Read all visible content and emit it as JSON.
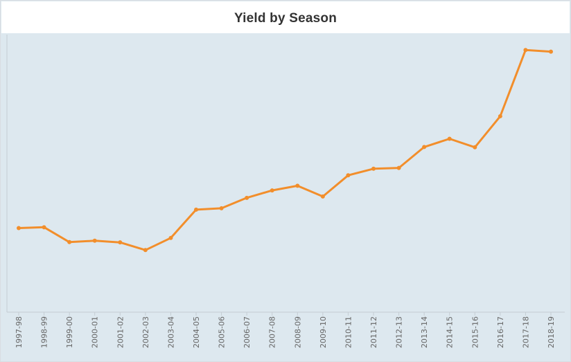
{
  "colors": {
    "background": "#dde8ef",
    "line": "#f28e2b",
    "axis": "#c5cdd3",
    "tick_text": "#666666",
    "title_text": "#333333"
  },
  "chart_data": {
    "type": "line",
    "title": "Yield by Season",
    "xlabel": "",
    "ylabel": "",
    "categories": [
      "1997-98",
      "1998-99",
      "1999-00",
      "2000-01",
      "2001-02",
      "2002-03",
      "2003-04",
      "2004-05",
      "2005-06",
      "2006-07",
      "2007-08",
      "2008-09",
      "2009-10",
      "2010-11",
      "2011-12",
      "2012-13",
      "2013-14",
      "2014-15",
      "2015-16",
      "2016-17",
      "2017-18",
      "2018-19"
    ],
    "series": [
      {
        "values": [
          30.6,
          30.9,
          25.5,
          26.0,
          25.4,
          22.6,
          27.0,
          37.3,
          37.8,
          41.6,
          44.3,
          46.0,
          42.1,
          49.8,
          52.2,
          52.5,
          60.1,
          63.1,
          60.0,
          71.3,
          95.4,
          94.8
        ]
      }
    ],
    "ylim": [
      0,
      100
    ],
    "y_axis_visible": false,
    "grid": false,
    "tick_label_orientation": "vertical"
  }
}
